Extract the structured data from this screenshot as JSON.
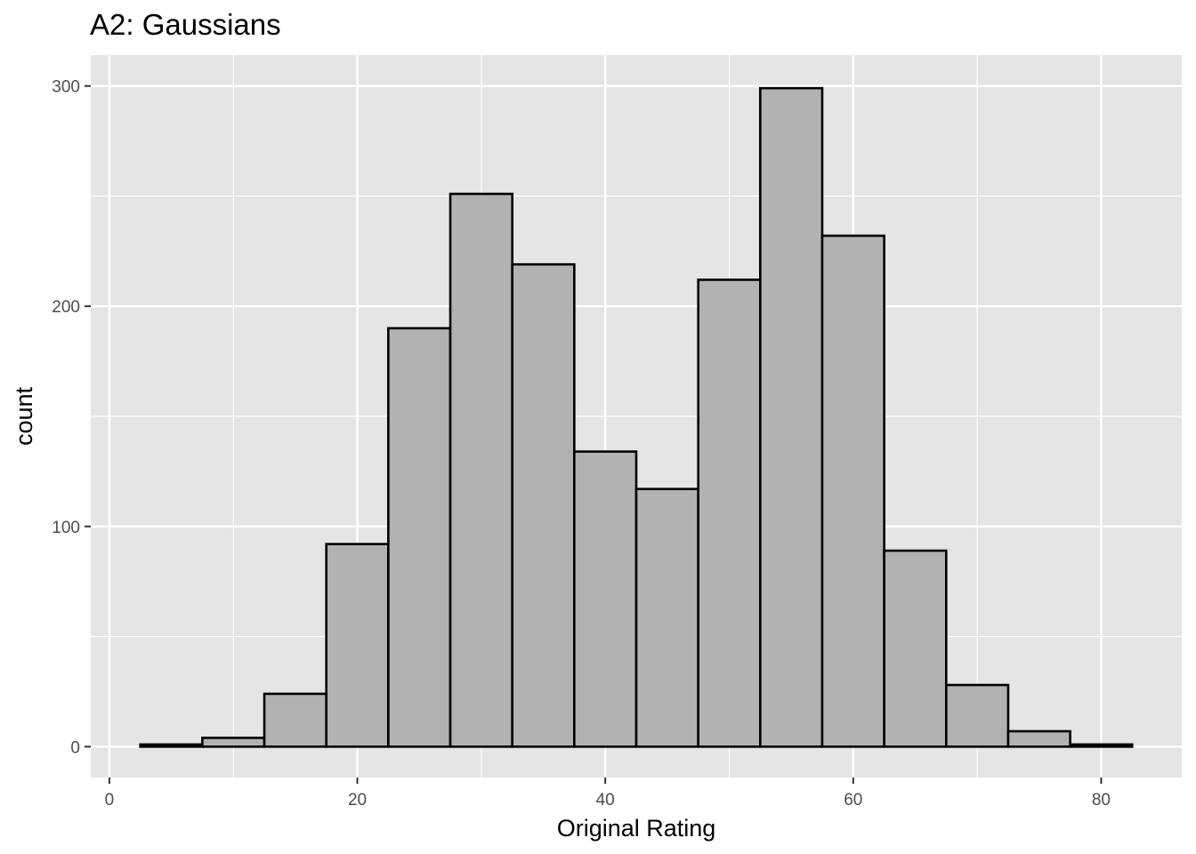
{
  "chart_data": {
    "type": "bar",
    "title": "A2: Gaussians",
    "xlabel": "Original Rating",
    "ylabel": "count",
    "bin_width": 5,
    "bins": [
      {
        "x": 5,
        "count": 1
      },
      {
        "x": 10,
        "count": 4
      },
      {
        "x": 15,
        "count": 24
      },
      {
        "x": 20,
        "count": 92
      },
      {
        "x": 25,
        "count": 190
      },
      {
        "x": 30,
        "count": 251
      },
      {
        "x": 35,
        "count": 219
      },
      {
        "x": 40,
        "count": 134
      },
      {
        "x": 45,
        "count": 117
      },
      {
        "x": 50,
        "count": 212
      },
      {
        "x": 55,
        "count": 299
      },
      {
        "x": 60,
        "count": 232
      },
      {
        "x": 65,
        "count": 89
      },
      {
        "x": 70,
        "count": 28
      },
      {
        "x": 75,
        "count": 7
      },
      {
        "x": 80,
        "count": 1
      }
    ],
    "xlim": [
      -1.5,
      86.5
    ],
    "ylim": [
      -14,
      314
    ],
    "x_ticks": [
      0,
      20,
      40,
      60,
      80
    ],
    "x_ticks_labels": [
      "0",
      "20",
      "40",
      "60",
      "80"
    ],
    "x_minor_ticks": [
      10,
      30,
      50,
      70
    ],
    "y_ticks": [
      0,
      100,
      200,
      300
    ],
    "y_ticks_labels": [
      "0",
      "100",
      "200",
      "300"
    ],
    "y_minor_ticks": [
      50,
      150,
      250
    ],
    "grid": true,
    "colors": {
      "panel_background": "#e5e5e5",
      "grid": "#ffffff",
      "bar_fill": "#b2b2b2",
      "bar_outline": "#000000",
      "tick_label": "#4d4d4d"
    }
  }
}
